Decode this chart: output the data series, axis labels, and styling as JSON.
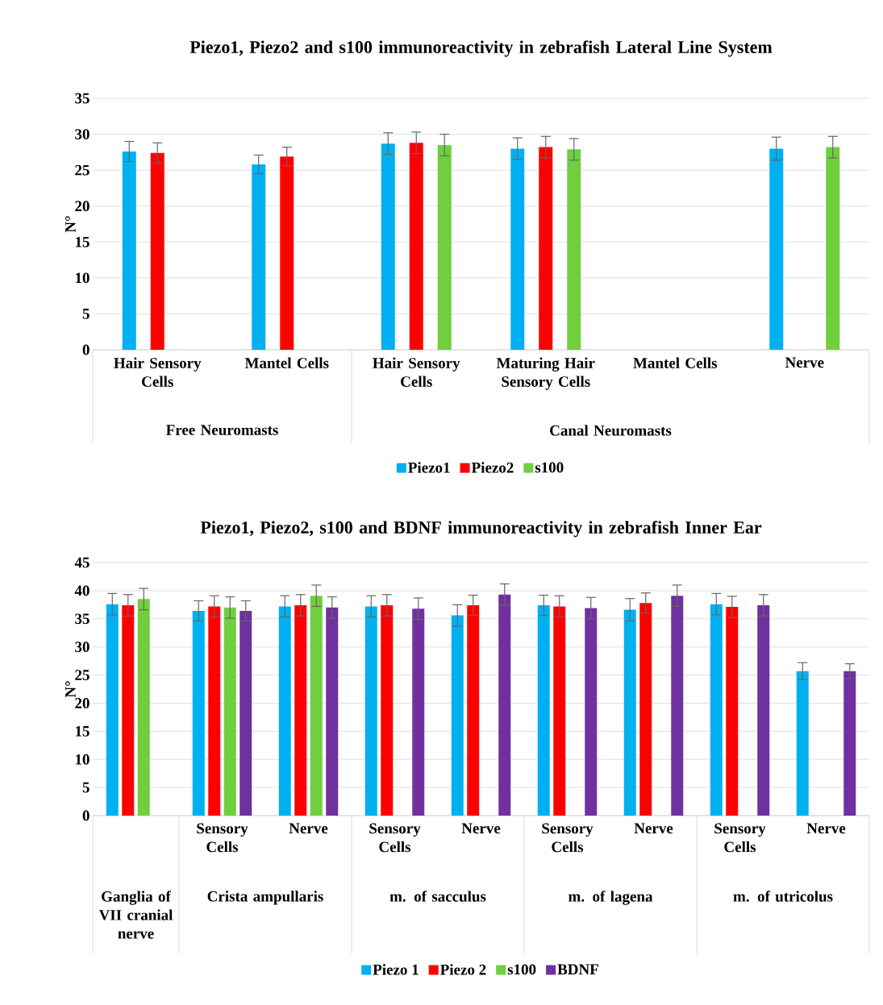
{
  "chart_data": [
    {
      "type": "bar",
      "title": "Piezo1, Piezo2 and s100 immunoreactivity in zebrafish Lateral Line System",
      "ylabel": "N°",
      "categories": [
        "Hair Sensory Cells",
        "Mantel Cells",
        "Hair Sensory Cells",
        "Maturing Hair Sensory Cells",
        "Mantel Cells",
        "Nerve"
      ],
      "series": [
        {
          "name": "Piezo1",
          "color": "#00b0f0",
          "values": [
            27.6,
            25.8,
            28.7,
            28.0,
            null,
            28.0
          ],
          "errors": [
            1.4,
            1.3,
            1.5,
            1.5,
            null,
            1.6
          ]
        },
        {
          "name": "Piezo2",
          "color": "#ff0000",
          "values": [
            27.4,
            26.9,
            28.8,
            28.2,
            null,
            null
          ],
          "errors": [
            1.4,
            1.3,
            1.5,
            1.5,
            null,
            null
          ]
        },
        {
          "name": "s100",
          "color": "#6fcf3f",
          "values": [
            null,
            null,
            28.5,
            27.9,
            null,
            28.2
          ],
          "errors": [
            null,
            null,
            1.5,
            1.5,
            null,
            1.5
          ]
        }
      ],
      "annotations": [
        "Free Neuromasts",
        "Canal Neuromasts"
      ],
      "ylim": [
        0,
        35
      ],
      "yticks": [
        0,
        5,
        10,
        15,
        20,
        25,
        30,
        35
      ],
      "grid": "y",
      "legend": "bottom"
    },
    {
      "type": "bar",
      "title": "Piezo1, Piezo2, s100 and BDNF immunoreactivity in zebrafish Inner Ear",
      "ylabel": "N°",
      "categories": [
        null,
        "Sensory Cells",
        "Nerve",
        "Sensory Cells",
        "Nerve",
        "Sensory Cells",
        "Nerve",
        "Sensory Cells",
        "Nerve"
      ],
      "series": [
        {
          "name": "Piezo 1",
          "color": "#00b0f0",
          "values": [
            37.6,
            36.4,
            37.2,
            37.2,
            35.6,
            37.4,
            36.6,
            37.6,
            25.7
          ],
          "errors": [
            1.9,
            1.8,
            1.9,
            1.9,
            1.9,
            1.8,
            2.0,
            1.9,
            1.5
          ]
        },
        {
          "name": "Piezo 2",
          "color": "#ff0000",
          "values": [
            37.4,
            37.2,
            37.4,
            37.4,
            37.4,
            37.2,
            37.8,
            37.1,
            null
          ],
          "errors": [
            1.9,
            1.9,
            1.9,
            1.9,
            1.8,
            1.9,
            1.8,
            1.9,
            null
          ]
        },
        {
          "name": "s100",
          "color": "#6fcf3f",
          "values": [
            38.5,
            37.0,
            39.1,
            null,
            null,
            null,
            null,
            null,
            null
          ],
          "errors": [
            1.9,
            1.9,
            1.9,
            null,
            null,
            null,
            null,
            null,
            null
          ]
        },
        {
          "name": "BDNF",
          "color": "#7030a0",
          "values": [
            null,
            36.4,
            37.0,
            36.8,
            39.3,
            36.9,
            39.1,
            37.4,
            25.7
          ],
          "errors": [
            null,
            1.8,
            1.9,
            1.9,
            1.9,
            1.9,
            1.9,
            1.9,
            1.3
          ]
        }
      ],
      "annotations": [
        "Ganglia of VII cranial nerve",
        "Crista ampullaris",
        "m. of sacculus",
        "m. of lagena",
        "m. of utricolus"
      ],
      "ylim": [
        0,
        45
      ],
      "yticks": [
        0,
        5,
        10,
        15,
        20,
        25,
        30,
        35,
        40,
        45
      ],
      "grid": "y",
      "legend": "bottom"
    }
  ]
}
